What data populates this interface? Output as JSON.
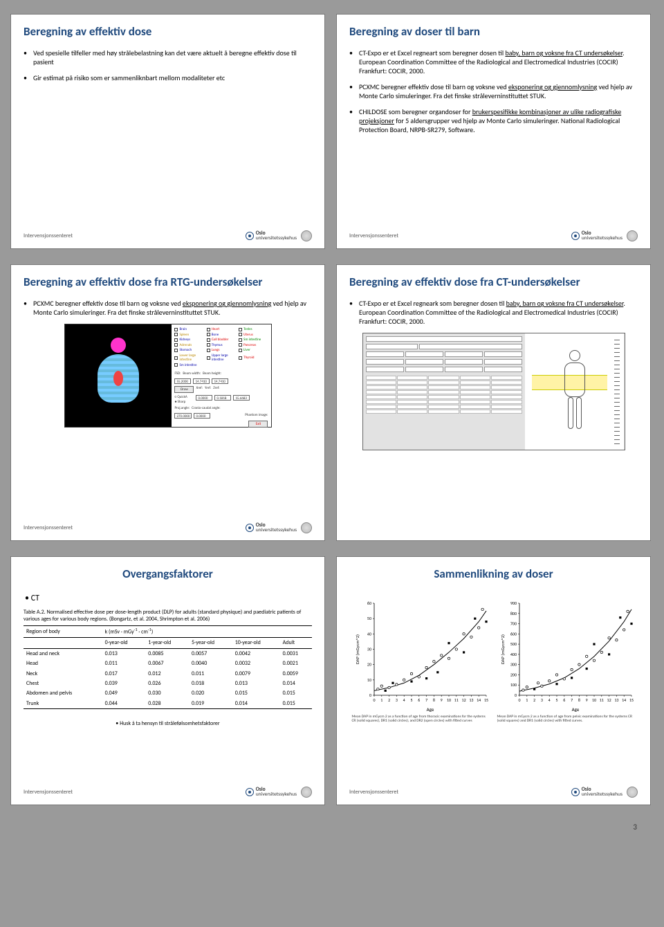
{
  "page_number": "3",
  "brand": {
    "line1": "Oslo",
    "line2": "universitetssykehus"
  },
  "footer_label": "Intervensjonssenteret",
  "slides": {
    "s1": {
      "title": "Beregning av effektiv dose",
      "b1": "Ved spesielle tilfeller med høy strålebelastning kan det være aktuelt å beregne effektiv dose til pasient",
      "b2": "Gir estimat på risiko som er sammenliknbart mellom modaliteter etc"
    },
    "s2": {
      "title": "Beregning av doser til barn",
      "b1a": "CT-Expo er et Excel regneart som beregner dosen til ",
      "b1u": "baby, barn og voksne fra CT undersøkelser",
      "b1b": ". European Coordination Committee of the Radiological and Electromedical Industries (COCIR) Frankfurt: COCIR, 2000.",
      "b2a": "PCXMC beregner effektiv dose til barn og voksne ved ",
      "b2u": "eksponering og gjennomlysning",
      "b2b": " ved hjelp av Monte Carlo simuleringer. Fra det finske stråleverninstituttet STUK.",
      "b3a": "CHILDOSE som beregner organdoser for ",
      "b3u": "brukerspesifikke kombinasjoner av ulike radiografiske projeksjoner",
      "b3b": " for 5 aldersgrupper ved hjelp av Monte Carlo simuleringer. National Radiological Protection Board, NRPB-SR279, Software."
    },
    "s3": {
      "title": "Beregning av effektiv dose fra RTG-undersøkelser",
      "b1a": "PCXMC beregner effektiv dose til barn og voksne ved ",
      "b1u": "eksponering og gjennomlysning",
      "b1b": " ved hjelp av Monte Carlo simuleringer. Fra det finske stråleverninstituttet STUK.",
      "organs": [
        "Brain",
        "Heart",
        "Testes",
        "Spleen",
        "Bone",
        "Uterus",
        "Kidneys",
        "Gall bladder",
        "Sm intestine",
        "Adrenals",
        "Thymus",
        "Pancreas",
        "Stomach",
        "Lungs",
        "Liver",
        "Lower large intestine",
        "Upper large intestine",
        "Thyroid",
        "Sm intestine"
      ],
      "params": {
        "fsd": "55.2000",
        "bw": "14.7410",
        "bh": "14.7410",
        "xref": "0.0000",
        "yref": "0.1818",
        "zref": "15.6683",
        "projdeg": "270.0000",
        "cranio": "0.0000"
      },
      "lbl_fsd": "FSD:",
      "lbl_beamw": "Beam width:",
      "lbl_beamh": "Beam height:",
      "lbl_xref": "Xref:",
      "lbl_yref": "Yref:",
      "lbl_zref": "Zref:",
      "lbl_proj": "Proj.angle:",
      "lbl_cranio": "Cranio-caudal angle:",
      "btn_draw": "Draw",
      "opt1": "QuickA",
      "opt2": "Sharp",
      "btn_exit": "Exit",
      "lbl_phantom": "Phantom image:"
    },
    "s4": {
      "title": "Beregning av effektiv dose fra CT-undersøkelser",
      "b1a": "CT-Expo er et Excel regneark som beregner dosen til ",
      "b1u": "baby, barn og voksne fra CT undersøkelser",
      "b1b": ". European Coordination Committee of the Radiological and Electromedical Industries (COCIR) Frankfurt: COCIR, 2000."
    },
    "s5": {
      "title": "Overgangsfaktorer",
      "ct": "CT",
      "caption": "Table A.2. Normalised effective dose per dose-length product (DLP) for adults (standard physique) and paediatric patients of various ages for various body regions. (Bongartz, et al. 2004, Shrimpton et al. 2006)",
      "col_region": "Region of body",
      "col_k": "k (mSv · mGy",
      "col_k_sup": "-1",
      "col_k2": " · cm",
      "col_k2_sup": "-1",
      "col_k3": ")",
      "ages": [
        "0-year-old",
        "1-year-old",
        "5-year-old",
        "10-year-old",
        "Adult"
      ],
      "rows": [
        {
          "r": "Head and neck",
          "v": [
            "0.013",
            "0.0085",
            "0.0057",
            "0.0042",
            "0.0031"
          ]
        },
        {
          "r": "Head",
          "v": [
            "0.011",
            "0.0067",
            "0.0040",
            "0.0032",
            "0.0021"
          ]
        },
        {
          "r": "Neck",
          "v": [
            "0.017",
            "0.012",
            "0.011",
            "0.0079",
            "0.0059"
          ]
        },
        {
          "r": "Chest",
          "v": [
            "0.039",
            "0.026",
            "0.018",
            "0.013",
            "0.014"
          ]
        },
        {
          "r": "Abdomen and pelvis",
          "v": [
            "0.049",
            "0.030",
            "0.020",
            "0.015",
            "0.015"
          ]
        },
        {
          "r": "Trunk",
          "v": [
            "0.044",
            "0.028",
            "0.019",
            "0.014",
            "0.015"
          ]
        }
      ],
      "footnote": "Husk å ta hensyn til strålefølsomhetsfaktorer"
    },
    "s6": {
      "title": "Sammenlikning av  doser",
      "chart1": {
        "type": "scatter-with-curve",
        "ylabel": "DAP (mGycm^2)",
        "xlabel": "Age",
        "xlim": [
          0,
          15
        ],
        "ylim": [
          0,
          60
        ],
        "ytick_step": 10,
        "xtick_step": 1,
        "bg": "#ffffff",
        "axis_color": "#000000",
        "curve_color": "#000000",
        "marker_fill": "#ffffff",
        "marker_stroke": "#000000",
        "curve": [
          [
            0,
            3
          ],
          [
            2,
            5
          ],
          [
            4,
            8
          ],
          [
            6,
            13
          ],
          [
            8,
            20
          ],
          [
            10,
            28
          ],
          [
            12,
            37
          ],
          [
            14,
            48
          ],
          [
            15,
            55
          ]
        ],
        "points": [
          [
            0.5,
            4,
            "c"
          ],
          [
            1,
            6,
            "c"
          ],
          [
            1.5,
            3,
            "s"
          ],
          [
            2,
            5,
            "c"
          ],
          [
            2.5,
            8,
            "s"
          ],
          [
            3,
            7,
            "c"
          ],
          [
            4,
            10,
            "c"
          ],
          [
            5,
            9,
            "s"
          ],
          [
            5,
            14,
            "c"
          ],
          [
            6,
            12,
            "c"
          ],
          [
            7,
            18,
            "c"
          ],
          [
            7,
            11,
            "s"
          ],
          [
            8,
            22,
            "c"
          ],
          [
            8.5,
            15,
            "s"
          ],
          [
            9,
            26,
            "c"
          ],
          [
            10,
            24,
            "c"
          ],
          [
            10,
            34,
            "s"
          ],
          [
            11,
            30,
            "c"
          ],
          [
            12,
            40,
            "c"
          ],
          [
            12,
            28,
            "s"
          ],
          [
            13,
            38,
            "c"
          ],
          [
            13.5,
            50,
            "s"
          ],
          [
            14,
            44,
            "c"
          ],
          [
            14.5,
            56,
            "c"
          ],
          [
            15,
            48,
            "s"
          ]
        ],
        "caption": "Mean DAP in mGycm 2 as a function of age from thoracic examinations for the systems CR (solid squares), DR1 (solid circles), and DR2 (open circles) with fitted curves"
      },
      "chart2": {
        "type": "scatter-with-curve",
        "ylabel": "DAP (mGycm^2)",
        "xlabel": "Age",
        "xlim": [
          0,
          15
        ],
        "ylim": [
          0,
          900
        ],
        "ytick_step": 100,
        "xtick_step": 1,
        "bg": "#ffffff",
        "axis_color": "#000000",
        "curve_color": "#000000",
        "marker_fill": "#ffffff",
        "marker_stroke": "#000000",
        "curve": [
          [
            0,
            40
          ],
          [
            2,
            70
          ],
          [
            4,
            110
          ],
          [
            6,
            170
          ],
          [
            8,
            260
          ],
          [
            10,
            380
          ],
          [
            12,
            530
          ],
          [
            14,
            720
          ],
          [
            15,
            840
          ]
        ],
        "points": [
          [
            0.5,
            50,
            "c"
          ],
          [
            1,
            80,
            "c"
          ],
          [
            2,
            60,
            "s"
          ],
          [
            2.5,
            120,
            "c"
          ],
          [
            3,
            90,
            "c"
          ],
          [
            4,
            140,
            "c"
          ],
          [
            5,
            110,
            "s"
          ],
          [
            5,
            200,
            "c"
          ],
          [
            6,
            160,
            "c"
          ],
          [
            7,
            250,
            "c"
          ],
          [
            7,
            170,
            "s"
          ],
          [
            8,
            300,
            "c"
          ],
          [
            9,
            260,
            "s"
          ],
          [
            9,
            380,
            "c"
          ],
          [
            10,
            340,
            "c"
          ],
          [
            10,
            500,
            "s"
          ],
          [
            11,
            420,
            "c"
          ],
          [
            12,
            560,
            "c"
          ],
          [
            12,
            400,
            "s"
          ],
          [
            13,
            540,
            "c"
          ],
          [
            13.5,
            760,
            "s"
          ],
          [
            14,
            640,
            "c"
          ],
          [
            14.5,
            820,
            "c"
          ],
          [
            15,
            700,
            "s"
          ]
        ],
        "caption": "Mean DAP in mGycm 2 as a function of age from pelvic examinations for the systems CR (solid squares) and DR1 (solid circles) with fitted curves."
      }
    }
  }
}
